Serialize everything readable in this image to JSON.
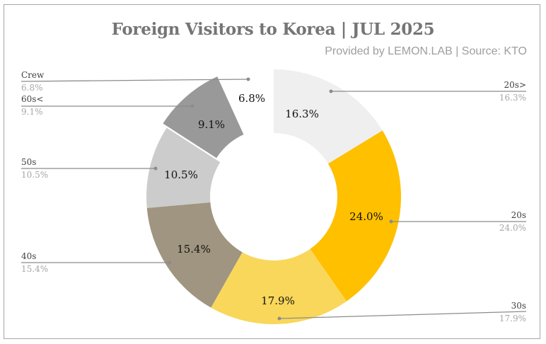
{
  "title": "Foreign Visitors to Korea | JUL 2025",
  "subtitle": "Provided by LEMON.LAB | Source: KTO",
  "chart_data": {
    "type": "pie",
    "variant": "donut",
    "title": "Foreign Visitors to Korea | JUL 2025",
    "subtitle": "Provided by LEMON.LAB | Source: KTO",
    "categories": [
      "20s>",
      "20s",
      "30s",
      "40s",
      "50s",
      "60s<",
      "Crew"
    ],
    "values": [
      16.3,
      24.0,
      17.9,
      15.4,
      10.5,
      9.1,
      6.8
    ],
    "unit": "%",
    "colors": [
      "#efefef",
      "#ffc000",
      "#f8d75a",
      "#a09580",
      "#cccccc",
      "#999999",
      "#ffffff"
    ],
    "start_angle": "12 o'clock",
    "direction": "clockwise",
    "exploded": [
      "60s<"
    ],
    "legend_position": "callout labels left and right"
  },
  "labels": [
    {
      "name": "20s>",
      "value": "16.3%"
    },
    {
      "name": "20s",
      "value": "24.0%"
    },
    {
      "name": "30s",
      "value": "17.9%"
    },
    {
      "name": "40s",
      "value": "15.4%"
    },
    {
      "name": "50s",
      "value": "10.5%"
    },
    {
      "name": "60s<",
      "value": "9.1%"
    },
    {
      "name": "Crew",
      "value": "6.8%"
    }
  ]
}
